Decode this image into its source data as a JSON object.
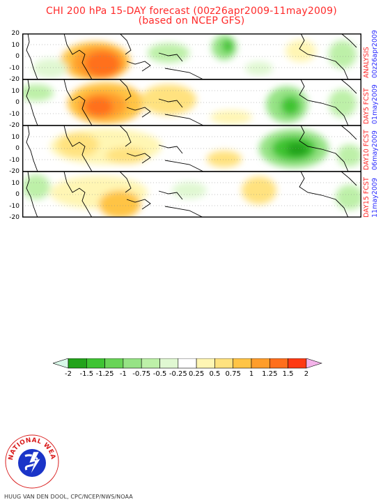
{
  "title_line1": "CHI 200 hPa 15-DAY forecast (00z26apr2009-11may2009)",
  "title_line2": "(based on NCEP GFS)",
  "y_ticks": [
    "20",
    "10",
    "0",
    "-10",
    "-20"
  ],
  "panels": [
    {
      "type_label": "ANALYSIS",
      "date_label": "00z26apr2009"
    },
    {
      "type_label": "DAY5 FCST",
      "date_label": "01may2009"
    },
    {
      "type_label": "DAY10 FCST",
      "date_label": "06may2009"
    },
    {
      "type_label": "DAY15 FCST",
      "date_label": "11may2009"
    }
  ],
  "legend": {
    "labels": [
      "-2",
      "-1.5",
      "-1.25",
      "-1",
      "-0.75",
      "-0.5",
      "-0.25",
      "0.25",
      "0.5",
      "0.75",
      "1",
      "1.25",
      "1.5",
      "2"
    ],
    "colors": [
      "#d8f8e8",
      "#23a31b",
      "#3fc433",
      "#69d457",
      "#96e385",
      "#bdf0a8",
      "#e0f8d2",
      "#ffffff",
      "#fff6b4",
      "#ffe27f",
      "#ffc445",
      "#ff9d2b",
      "#ff6f1c",
      "#ff3a13",
      "#f4b4ea"
    ]
  },
  "credit": "HUUG VAN DEN DOOL, CPC/NCEP/NWS/NOAA",
  "logo_text": "NATIONAL WEATHER SERVICE",
  "colors": {
    "title": "#ff2a2a",
    "side_blue": "#2a2aff"
  }
}
